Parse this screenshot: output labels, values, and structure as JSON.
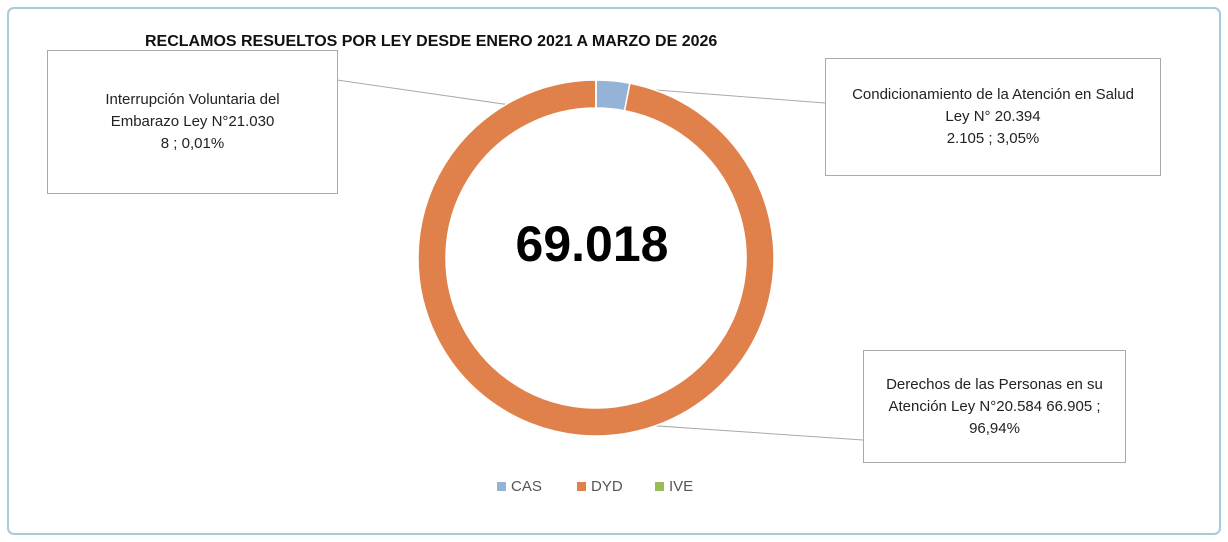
{
  "chart_data": {
    "type": "donut",
    "title": "RECLAMOS RESUELTOS POR LEY DESDE ENERO 2021 A  MARZO DE 2026",
    "center_label": "69.018",
    "categories": [
      "CAS",
      "DYD",
      "IVE"
    ],
    "names": [
      "Condicionamiento de la Atención en Salud Ley N° 20.394",
      "Derechos de las Personas en su Atención  Ley N°20.584",
      "Interrupción Voluntaria del Embarazo Ley N°21.030"
    ],
    "values": [
      2105,
      66905,
      8
    ],
    "value_labels": [
      "2.105 ; 3,05%",
      "66.905 ; 96,94%",
      "8 ; 0,01%"
    ],
    "colors": [
      "#95b3d7",
      "#e0804a",
      "#9bbb59"
    ],
    "legend": "bottom"
  }
}
